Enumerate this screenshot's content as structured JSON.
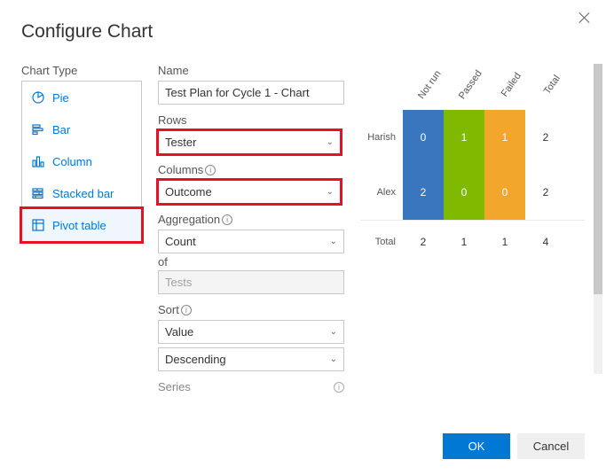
{
  "dialog": {
    "title": "Configure Chart"
  },
  "chartType": {
    "label": "Chart Type",
    "items": [
      {
        "label": "Pie",
        "icon": "pie"
      },
      {
        "label": "Bar",
        "icon": "bar"
      },
      {
        "label": "Column",
        "icon": "column"
      },
      {
        "label": "Stacked bar",
        "icon": "stacked-bar"
      },
      {
        "label": "Pivot table",
        "icon": "pivot-table",
        "active": true,
        "highlight": true
      }
    ]
  },
  "fields": {
    "name": {
      "label": "Name",
      "value": "Test Plan for Cycle 1 - Chart"
    },
    "rows": {
      "label": "Rows",
      "value": "Tester",
      "highlight": true
    },
    "columns": {
      "label": "Columns",
      "value": "Outcome",
      "highlight": true,
      "info": true
    },
    "aggregation": {
      "label": "Aggregation",
      "value": "Count",
      "info": true
    },
    "ofLabel": "of",
    "ofField": {
      "value": "Tests",
      "disabled": true
    },
    "sort": {
      "label": "Sort",
      "value1": "Value",
      "value2": "Descending",
      "info": true
    },
    "series": {
      "label": "Series",
      "info": true
    }
  },
  "preview": {
    "columnHeaders": [
      "Not run",
      "Passed",
      "Failed",
      "Total"
    ],
    "colors": {
      "Not run": "#3a76bd",
      "Passed": "#7fba00",
      "Failed": "#f2a72c"
    },
    "rows": [
      {
        "label": "Harish",
        "cells": [
          0,
          1,
          1
        ],
        "total": 2
      },
      {
        "label": "Alex",
        "cells": [
          2,
          0,
          0
        ],
        "total": 2
      }
    ],
    "totalRow": {
      "label": "Total",
      "cells": [
        2,
        1,
        1
      ],
      "total": 4
    }
  },
  "buttons": {
    "ok": "OK",
    "cancel": "Cancel"
  }
}
